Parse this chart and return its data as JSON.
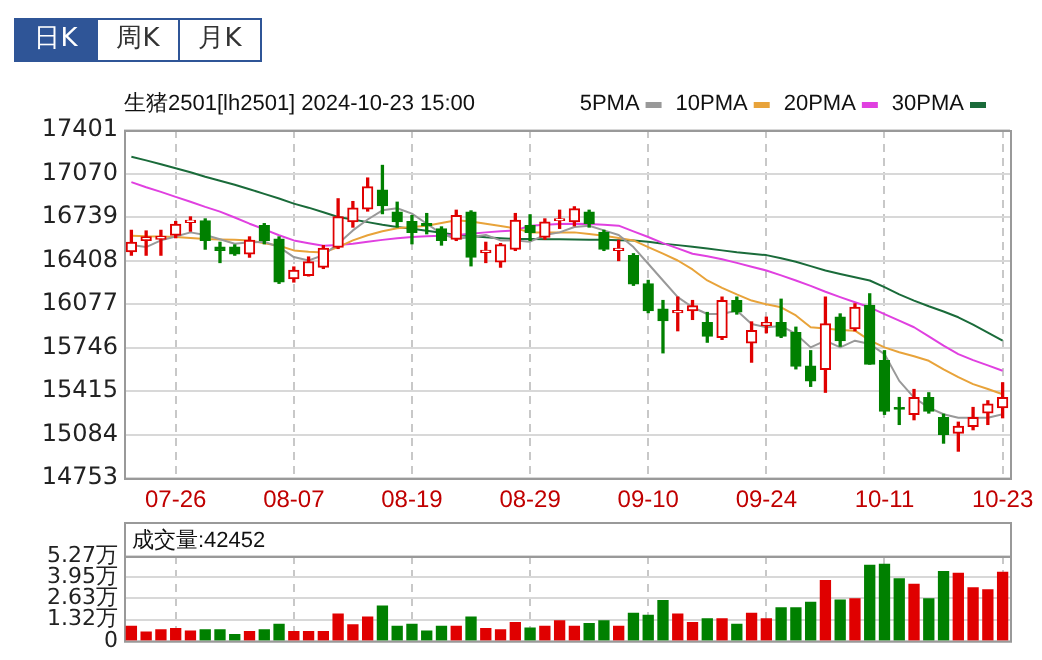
{
  "chart_data": [
    {
      "type": "candlestick",
      "title": "生猪2501[lh2501] 2024-10-23 15:00",
      "annotations": [
        "日K",
        "周K",
        "月K"
      ],
      "categories": [
        null,
        null,
        null,
        "07-26",
        null,
        null,
        null,
        null,
        null,
        null,
        null,
        "08-07",
        null,
        null,
        null,
        null,
        null,
        null,
        null,
        "08-19",
        null,
        null,
        null,
        null,
        null,
        null,
        null,
        "08-29",
        null,
        null,
        null,
        null,
        null,
        null,
        null,
        "09-10",
        null,
        null,
        null,
        null,
        null,
        null,
        null,
        "09-24",
        null,
        null,
        null,
        null,
        null,
        null,
        null,
        "10-11",
        null,
        null,
        null,
        null,
        null,
        null,
        null,
        "10-23"
      ],
      "ohlc": [
        [
          16475,
          16637,
          16449,
          16546
        ],
        [
          16561,
          16632,
          16449,
          16587
        ],
        [
          16571,
          16637,
          16449,
          16592
        ],
        [
          16602,
          16704,
          16582,
          16683
        ],
        [
          16699,
          16739,
          16632,
          16714
        ],
        [
          16709,
          16724,
          16495,
          16561
        ],
        [
          16510,
          16546,
          16393,
          16485
        ],
        [
          16510,
          16526,
          16449,
          16459
        ],
        [
          16459,
          16587,
          16434,
          16561
        ],
        [
          16673,
          16688,
          16536,
          16561
        ],
        [
          16571,
          16587,
          16235,
          16245
        ],
        [
          16271,
          16358,
          16245,
          16332
        ],
        [
          16296,
          16434,
          16291,
          16398
        ],
        [
          16358,
          16521,
          16348,
          16500
        ],
        [
          16510,
          16877,
          16500,
          16739
        ],
        [
          16704,
          16856,
          16663,
          16806
        ],
        [
          16801,
          17035,
          16785,
          16968
        ],
        [
          16943,
          17131,
          16765,
          16826
        ],
        [
          16775,
          16851,
          16663,
          16704
        ],
        [
          16704,
          16749,
          16536,
          16622
        ],
        [
          16688,
          16765,
          16612,
          16673
        ],
        [
          16648,
          16663,
          16526,
          16561
        ],
        [
          16571,
          16790,
          16561,
          16749
        ],
        [
          16775,
          16785,
          16368,
          16434
        ],
        [
          16469,
          16546,
          16393,
          16485
        ],
        [
          16398,
          16536,
          16358,
          16526
        ],
        [
          16495,
          16765,
          16485,
          16714
        ],
        [
          16673,
          16755,
          16561,
          16622
        ],
        [
          16587,
          16724,
          16571,
          16699
        ],
        [
          16714,
          16790,
          16653,
          16724
        ],
        [
          16704,
          16816,
          16673,
          16801
        ],
        [
          16775,
          16790,
          16663,
          16688
        ],
        [
          16622,
          16637,
          16485,
          16495
        ],
        [
          16485,
          16561,
          16408,
          16500
        ],
        [
          16444,
          16459,
          16220,
          16230
        ],
        [
          16230,
          16256,
          16012,
          16027
        ],
        [
          16037,
          16103,
          15706,
          15951
        ],
        [
          16012,
          16129,
          15874,
          16027
        ],
        [
          16027,
          16103,
          15960,
          16062
        ],
        [
          15935,
          16012,
          15787,
          15833
        ],
        [
          15823,
          16129,
          15808,
          16103
        ],
        [
          16103,
          16129,
          16001,
          16017
        ],
        [
          15782,
          15940,
          15635,
          15874
        ],
        [
          15915,
          15976,
          15859,
          15935
        ],
        [
          15935,
          16113,
          15823,
          15833
        ],
        [
          15859,
          15900,
          15584,
          15604
        ],
        [
          15604,
          15721,
          15451,
          15492
        ],
        [
          15579,
          16129,
          15406,
          15925
        ],
        [
          15976,
          16001,
          15757,
          15798
        ],
        [
          15889,
          16078,
          15874,
          16052
        ],
        [
          16067,
          16154,
          15620,
          15620
        ],
        [
          15645,
          15721,
          15238,
          15263
        ],
        [
          15289,
          15365,
          15161,
          15278
        ],
        [
          15238,
          15426,
          15197,
          15365
        ],
        [
          15365,
          15401,
          15248,
          15263
        ],
        [
          15212,
          15238,
          15019,
          15085
        ],
        [
          15095,
          15177,
          14958,
          15146
        ],
        [
          15146,
          15289,
          15121,
          15212
        ],
        [
          15248,
          15340,
          15161,
          15314
        ],
        [
          15289,
          15477,
          15212,
          15365
        ]
      ],
      "colors": [
        "#e00000",
        "#e00000",
        "#e00000",
        "#e00000",
        "#e00000",
        "#008000",
        "#008000",
        "#008000",
        "#e00000",
        "#008000",
        "#008000",
        "#e00000",
        "#e00000",
        "#e00000",
        "#e00000",
        "#e00000",
        "#e00000",
        "#008000",
        "#008000",
        "#008000",
        "#008000",
        "#008000",
        "#e00000",
        "#008000",
        "#e00000",
        "#e00000",
        "#e00000",
        "#008000",
        "#e00000",
        "#e00000",
        "#e00000",
        "#008000",
        "#008000",
        "#e00000",
        "#008000",
        "#008000",
        "#008000",
        "#e00000",
        "#e00000",
        "#008000",
        "#e00000",
        "#008000",
        "#e00000",
        "#e00000",
        "#008000",
        "#008000",
        "#008000",
        "#e00000",
        "#008000",
        "#e00000",
        "#008000",
        "#008000",
        "#008000",
        "#e00000",
        "#008000",
        "#008000",
        "#e00000",
        "#e00000",
        "#e00000",
        "#e00000"
      ],
      "series": [
        {
          "name": "5PMA",
          "type": "line",
          "color": "#999999",
          "values": [
            16526,
            16510,
            16561,
            16590,
            16622,
            16602,
            16570,
            16536,
            16546,
            16551,
            16510,
            16434,
            16408,
            16449,
            16536,
            16637,
            16720,
            16790,
            16806,
            16765,
            16688,
            16612,
            16571,
            16587,
            16602,
            16561,
            16561,
            16551,
            16602,
            16622,
            16663,
            16673,
            16637,
            16602,
            16510,
            16383,
            16256,
            16129,
            16052,
            16001,
            16001,
            16027,
            15925,
            15900,
            15910,
            15849,
            15747,
            15798,
            15747,
            15798,
            15772,
            15696,
            15492,
            15365,
            15289,
            15238,
            15212,
            15212,
            15212,
            15238
          ]
        },
        {
          "name": "10PMA",
          "type": "line",
          "color": "#e8a33a",
          "values": [
            16597,
            16592,
            16590,
            16587,
            16580,
            16571,
            16568,
            16566,
            16561,
            16540,
            16520,
            16485,
            16475,
            16469,
            16510,
            16561,
            16600,
            16630,
            16653,
            16663,
            16673,
            16694,
            16714,
            16704,
            16688,
            16670,
            16653,
            16622,
            16622,
            16622,
            16622,
            16610,
            16597,
            16580,
            16561,
            16510,
            16460,
            16408,
            16340,
            16256,
            16200,
            16150,
            16103,
            16075,
            16052,
            15990,
            15900,
            15890,
            15880,
            15874,
            15800,
            15747,
            15710,
            15680,
            15645,
            15580,
            15520,
            15467,
            15430,
            15390
          ]
        },
        {
          "name": "20PMA",
          "type": "line",
          "color": "#e040e0",
          "values": [
            17004,
            16965,
            16930,
            16892,
            16855,
            16816,
            16780,
            16735,
            16688,
            16645,
            16600,
            16561,
            16540,
            16521,
            16525,
            16536,
            16550,
            16565,
            16578,
            16587,
            16592,
            16597,
            16602,
            16612,
            16622,
            16630,
            16637,
            16673,
            16680,
            16685,
            16688,
            16685,
            16680,
            16673,
            16630,
            16587,
            16540,
            16500,
            16459,
            16440,
            16418,
            16390,
            16360,
            16332,
            16295,
            16256,
            16215,
            16170,
            16129,
            16090,
            16052,
            16000,
            15950,
            15900,
            15830,
            15760,
            15696,
            15650,
            15610,
            15569
          ]
        },
        {
          "name": "30PMA",
          "type": "line",
          "color": "#1a6b3a",
          "values": [
            17197,
            17170,
            17140,
            17110,
            17080,
            17045,
            17015,
            16985,
            16950,
            16915,
            16880,
            16841,
            16810,
            16775,
            16739,
            16720,
            16700,
            16680,
            16663,
            16650,
            16635,
            16620,
            16602,
            16595,
            16585,
            16578,
            16571,
            16571,
            16570,
            16570,
            16568,
            16566,
            16565,
            16563,
            16561,
            16550,
            16536,
            16525,
            16512,
            16500,
            16485,
            16470,
            16460,
            16449,
            16425,
            16398,
            16365,
            16332,
            16305,
            16280,
            16256,
            16205,
            16150,
            16103,
            16060,
            16020,
            15976,
            15920,
            15860,
            15798
          ]
        }
      ],
      "ylim": [
        14753,
        17401
      ],
      "yticks": [
        14753,
        15084,
        15415,
        15746,
        16077,
        16408,
        16739,
        17070,
        17401
      ],
      "grid": true,
      "legend": "top right",
      "marker": "none"
    },
    {
      "type": "bar",
      "title": "成交量:42452",
      "categories": [
        null,
        null,
        null,
        null,
        null,
        null,
        null,
        null,
        null,
        null,
        null,
        null,
        null,
        null,
        null,
        null,
        null,
        null,
        null,
        null,
        null,
        null,
        null,
        null,
        null,
        null,
        null,
        null,
        null,
        null,
        null,
        null,
        null,
        null,
        null,
        null,
        null,
        null,
        null,
        null,
        null,
        null,
        null,
        null,
        null,
        null,
        null,
        null,
        null,
        null,
        null,
        null,
        null,
        null,
        null,
        null,
        null,
        null,
        null,
        null
      ],
      "values": [
        0.9,
        0.53,
        0.68,
        0.75,
        0.6,
        0.68,
        0.68,
        0.38,
        0.57,
        0.68,
        1.02,
        0.57,
        0.57,
        0.57,
        1.66,
        0.98,
        1.47,
        2.15,
        0.9,
        1.02,
        0.6,
        0.9,
        0.9,
        1.47,
        0.75,
        0.68,
        1.13,
        0.79,
        0.9,
        1.24,
        0.9,
        1.06,
        1.24,
        0.9,
        1.7,
        1.58,
        2.49,
        1.66,
        1.13,
        1.36,
        1.36,
        1.02,
        1.7,
        1.36,
        2.04,
        2.04,
        2.38,
        3.73,
        2.53,
        2.6,
        4.68,
        4.75,
        3.85,
        3.51,
        2.6,
        4.3,
        4.19,
        3.28,
        3.17,
        4.2452
      ],
      "colors": [
        "#e00000",
        "#e00000",
        "#e00000",
        "#e00000",
        "#e00000",
        "#008000",
        "#008000",
        "#008000",
        "#e00000",
        "#008000",
        "#008000",
        "#e00000",
        "#e00000",
        "#e00000",
        "#e00000",
        "#e00000",
        "#e00000",
        "#008000",
        "#008000",
        "#008000",
        "#008000",
        "#008000",
        "#e00000",
        "#008000",
        "#e00000",
        "#e00000",
        "#e00000",
        "#008000",
        "#e00000",
        "#e00000",
        "#e00000",
        "#008000",
        "#008000",
        "#e00000",
        "#008000",
        "#008000",
        "#008000",
        "#e00000",
        "#e00000",
        "#008000",
        "#e00000",
        "#008000",
        "#e00000",
        "#e00000",
        "#008000",
        "#008000",
        "#008000",
        "#e00000",
        "#008000",
        "#e00000",
        "#008000",
        "#008000",
        "#008000",
        "#e00000",
        "#008000",
        "#008000",
        "#e00000",
        "#e00000",
        "#e00000",
        "#e00000"
      ],
      "ylim": [
        0,
        5.27
      ],
      "yticks": [
        0,
        {
          "value": 1.32,
          "label": "1.32万"
        },
        {
          "value": 2.63,
          "label": "2.63万"
        },
        {
          "value": 3.95,
          "label": "3.95万"
        },
        {
          "value": 5.27,
          "label": "5.27万"
        }
      ],
      "grid": true,
      "tick_labels": "y"
    }
  ]
}
